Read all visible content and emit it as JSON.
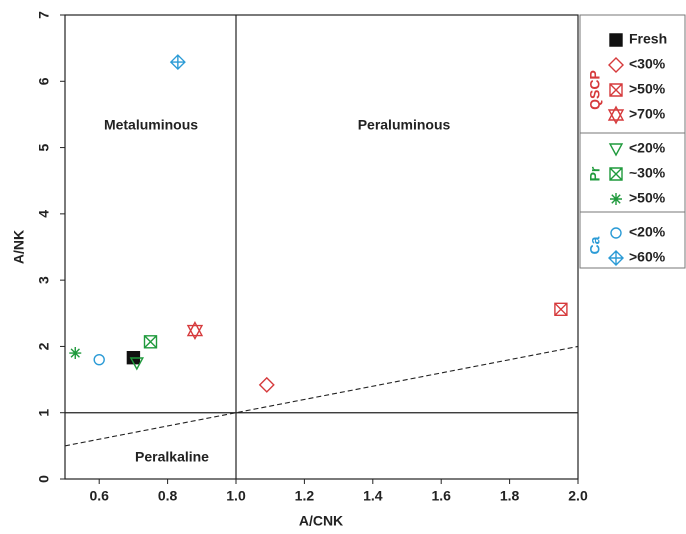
{
  "chart_data": {
    "type": "scatter",
    "x_label": "A/CNK",
    "y_label": "A/NK",
    "xlim": [
      0.5,
      2.0
    ],
    "ylim": [
      0,
      7
    ],
    "xticks": [
      0.6,
      0.8,
      {
        "value": 1,
        "label": "1.0"
      },
      1.2,
      1.4,
      1.6,
      1.8,
      {
        "value": 2,
        "label": "2.0"
      }
    ],
    "yticks": [
      0,
      1,
      2,
      3,
      4,
      5,
      6,
      7
    ],
    "reference_lines": {
      "vertical": [
        1
      ],
      "horizontal": [
        1
      ],
      "dashed": {
        "x": [
          0.5,
          2.0
        ],
        "y": [
          0.5,
          2.0
        ]
      }
    },
    "annotations": [
      "Metaluminous",
      "Peraluminous",
      "Peralkaline"
    ],
    "groups": [
      {
        "name": "QSCP",
        "color": "#d63a3c"
      },
      {
        "name": "Pr",
        "color": "#1f9a3c"
      },
      {
        "name": "Ca",
        "color": "#2b9bd6"
      }
    ],
    "series": [
      {
        "name": "Fresh",
        "marker": "filled-square",
        "color": "#111111",
        "x": [
          0.7
        ],
        "y": [
          1.83
        ]
      },
      {
        "name": "<30%",
        "group": 0,
        "marker": "diamond",
        "color": "#d63a3c",
        "x": [
          1.09
        ],
        "y": [
          1.42
        ]
      },
      {
        "name": ">50%",
        "group": 0,
        "marker": "boxed-x",
        "color": "#d63a3c",
        "x": [
          1.95
        ],
        "y": [
          2.56
        ]
      },
      {
        "name": ">70%",
        "group": 0,
        "marker": "star-of-david",
        "color": "#d63a3c",
        "x": [
          0.88
        ],
        "y": [
          2.24
        ]
      },
      {
        "name": "<20%",
        "group": 1,
        "marker": "triangle-down",
        "color": "#1f9a3c",
        "x": [
          0.71
        ],
        "y": [
          1.75
        ]
      },
      {
        "name": "~30%",
        "group": 1,
        "marker": "boxed-x",
        "color": "#1f9a3c",
        "x": [
          0.75
        ],
        "y": [
          2.07
        ]
      },
      {
        "name": ">50%",
        "group": 1,
        "marker": "asterisk",
        "color": "#1f9a3c",
        "x": [
          0.53
        ],
        "y": [
          1.9
        ]
      },
      {
        "name": "<20%",
        "group": 2,
        "marker": "circle",
        "color": "#2b9bd6",
        "x": [
          0.6
        ],
        "y": [
          1.8
        ]
      },
      {
        "name": ">60%",
        "group": 2,
        "marker": "crossed-diamond",
        "color": "#2b9bd6",
        "x": [
          0.83
        ],
        "y": [
          6.29
        ]
      }
    ]
  }
}
